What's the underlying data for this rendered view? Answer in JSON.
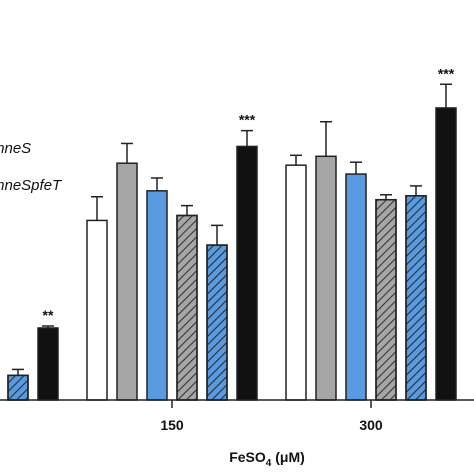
{
  "chart_data": {
    "type": "bar",
    "categories": [
      null,
      "150",
      "300"
    ],
    "x_label": [
      "FeSO",
      "4",
      " (μM)"
    ],
    "ylim": [
      0,
      300
    ],
    "series": [
      {
        "color": "#ffffff",
        "hatch": false,
        "values": [
          null,
          182,
          238
        ],
        "errors": [
          null,
          24,
          10
        ]
      },
      {
        "color": "#a6a6a6",
        "hatch": false,
        "values": [
          null,
          240,
          247
        ],
        "errors": [
          null,
          20,
          35
        ]
      },
      {
        "name": "mneS",
        "color": "#5a9ae0",
        "hatch": false,
        "values": [
          null,
          212,
          229
        ],
        "errors": [
          null,
          13,
          12
        ]
      },
      {
        "color": "#a6a6a6",
        "hatch": true,
        "values": [
          null,
          187,
          203
        ],
        "errors": [
          null,
          10,
          5
        ]
      },
      {
        "name": "mneSpfeT",
        "color": "#5a9ae0",
        "hatch": true,
        "values": [
          25,
          157,
          207
        ],
        "errors": [
          6,
          20,
          10
        ]
      },
      {
        "color": "#111111",
        "hatch": false,
        "values": [
          73,
          257,
          296
        ],
        "errors": [
          2,
          16,
          24
        ]
      }
    ],
    "annotations": [
      {
        "text": "**",
        "series": 5,
        "index": 0
      },
      {
        "text": "***",
        "series": 5,
        "index": 1
      },
      {
        "text": "***",
        "series": 5,
        "index": 2
      }
    ]
  }
}
